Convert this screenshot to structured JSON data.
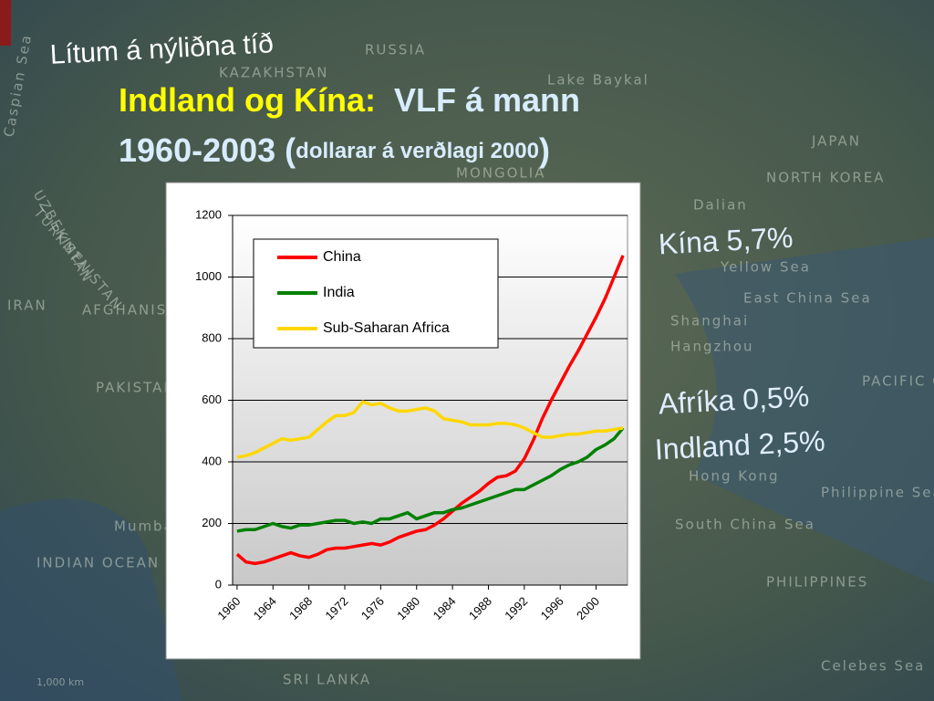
{
  "slide": {
    "subtitle": "Lítum á nýliðna tíð",
    "title_part1": "Indland og Kína:",
    "title_part2": "VLF á mann",
    "title_part3": "1960-2003 (",
    "title_part4": "dollarar á verðlagi 2000",
    "title_part5": ")",
    "annotations": [
      "Kína 5,7%",
      "Afríka 0,5%",
      "Indland 2,5%"
    ],
    "map_labels": [
      "RUSSIA",
      "Lake Baykal",
      "Caspian Sea",
      "KAZAKHSTAN",
      "UZBEKISTAN",
      "TURKMENISTAN",
      "MONGOLIA",
      "JAPAN",
      "NORTH KOREA",
      "Dalian",
      "Yellow Sea",
      "East China Sea",
      "Shanghai",
      "Hangzhou",
      "PACIFIC OCEAN",
      "IRAN",
      "AFGHANISTAN",
      "PAKISTAN",
      "Mumbai",
      "INDIAN OCEAN",
      "Hong Kong",
      "Philippine Sea",
      "South China Sea",
      "PHILIPPINES",
      "SRI LANKA",
      "Celebes Sea",
      "1,000 km"
    ]
  },
  "chart_data": {
    "type": "line",
    "x": [
      1960,
      1961,
      1962,
      1963,
      1964,
      1965,
      1966,
      1967,
      1968,
      1969,
      1970,
      1971,
      1972,
      1973,
      1974,
      1975,
      1976,
      1977,
      1978,
      1979,
      1980,
      1981,
      1982,
      1983,
      1984,
      1985,
      1986,
      1987,
      1988,
      1989,
      1990,
      1991,
      1992,
      1993,
      1994,
      1995,
      1996,
      1997,
      1998,
      1999,
      2000,
      2001,
      2002,
      2003
    ],
    "xlim": [
      1959.5,
      2003.5
    ],
    "xticks": [
      1960,
      1964,
      1968,
      1972,
      1976,
      1980,
      1984,
      1988,
      1992,
      1996,
      2000
    ],
    "ylim": [
      0,
      1200
    ],
    "yticks": [
      0,
      200,
      400,
      600,
      800,
      1000,
      1200
    ],
    "grid": true,
    "legend": "upper left",
    "series": [
      {
        "name": "China",
        "color": "#ff0000",
        "values": [
          100,
          75,
          70,
          75,
          85,
          95,
          105,
          95,
          90,
          100,
          115,
          120,
          120,
          125,
          130,
          135,
          130,
          140,
          155,
          165,
          175,
          180,
          195,
          215,
          240,
          265,
          285,
          305,
          330,
          350,
          355,
          370,
          410,
          470,
          540,
          600,
          655,
          710,
          760,
          815,
          870,
          930,
          1000,
          1070
        ]
      },
      {
        "name": "India",
        "color": "#008000",
        "values": [
          175,
          180,
          180,
          190,
          200,
          190,
          185,
          195,
          195,
          200,
          205,
          210,
          210,
          200,
          205,
          200,
          215,
          215,
          225,
          235,
          215,
          225,
          235,
          235,
          245,
          250,
          260,
          270,
          280,
          290,
          300,
          310,
          310,
          325,
          340,
          355,
          375,
          390,
          400,
          415,
          440,
          455,
          475,
          510
        ]
      },
      {
        "name": "Sub-Saharan Africa",
        "color": "#ffd700",
        "values": [
          415,
          420,
          430,
          445,
          460,
          475,
          470,
          475,
          480,
          505,
          530,
          550,
          550,
          560,
          595,
          585,
          590,
          575,
          565,
          565,
          570,
          575,
          565,
          540,
          535,
          530,
          520,
          520,
          520,
          525,
          525,
          520,
          510,
          495,
          480,
          480,
          485,
          490,
          490,
          495,
          500,
          500,
          505,
          510
        ]
      }
    ]
  }
}
